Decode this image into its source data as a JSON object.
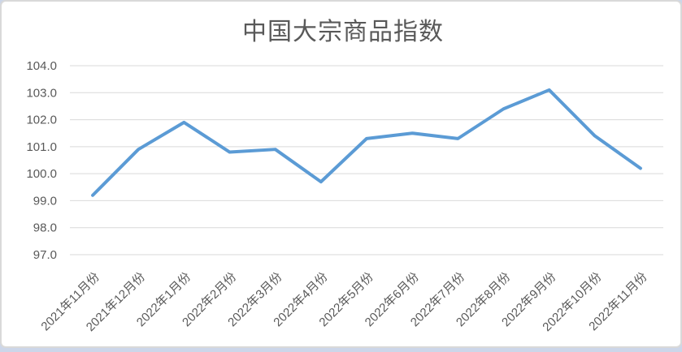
{
  "window": {
    "background_color": "#ffffff",
    "frame_border_color": "#d9d9d9",
    "bottom_strip_color": "#ccd6e9"
  },
  "chart_data": {
    "type": "line",
    "title": "中国大宗商品指数",
    "categories": [
      "2021年11月份",
      "2021年12月份",
      "2022年1月份",
      "2022年2月份",
      "2022年3月份",
      "2022年4月份",
      "2022年5月份",
      "2022年6月份",
      "2022年7月份",
      "2022年8月份",
      "2022年9月份",
      "2022年10月份",
      "2022年11月份"
    ],
    "series": [
      {
        "name": "中国大宗商品指数",
        "values": [
          99.2,
          100.9,
          101.9,
          100.8,
          100.9,
          99.7,
          101.3,
          101.5,
          101.3,
          102.4,
          103.1,
          101.4,
          100.2
        ]
      }
    ],
    "xlabel": "",
    "ylabel": "",
    "ylim": [
      97.0,
      104.0
    ],
    "ytick_step": 1.0,
    "ytick_labels": [
      "104.0",
      "103.0",
      "102.0",
      "101.0",
      "100.0",
      "99.0",
      "98.0",
      "97.0"
    ],
    "grid": true,
    "legend": false,
    "x_label_rotation_deg": 45,
    "line_color": "#5B9BD5",
    "title_color": "#595959",
    "axis_label_color": "#595959",
    "gridline_color": "#d9d9d9"
  }
}
